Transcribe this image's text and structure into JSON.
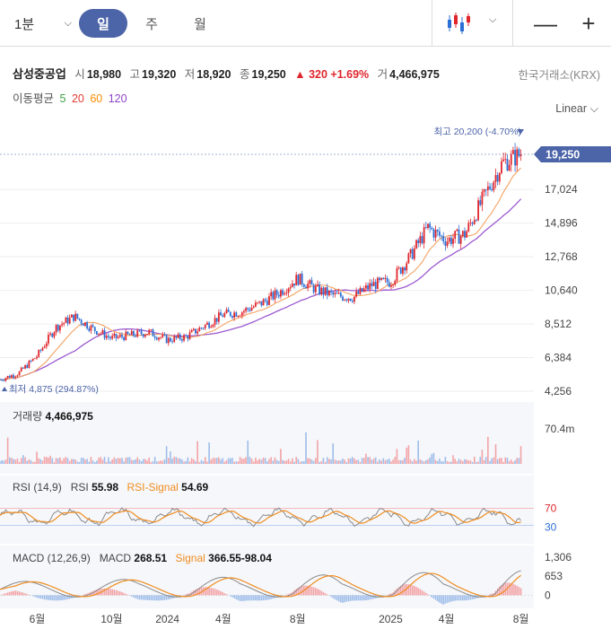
{
  "toolbar": {
    "timeframe_label": "1분",
    "periods": [
      "일",
      "주",
      "월"
    ],
    "active_period": 0
  },
  "stock": {
    "name": "삼성중공업",
    "open_label": "시",
    "open": "18,980",
    "high_label": "고",
    "high": "19,320",
    "low_label": "저",
    "low": "18,920",
    "close_label": "종",
    "close": "19,250",
    "change": "▲ 320 +1.69%",
    "volume_label": "거",
    "volume": "4,466,975",
    "exchange": "한국거래소(KRX)"
  },
  "moving_average": {
    "label": "이동평균",
    "periods": [
      {
        "label": "5",
        "color": "#43a047"
      },
      {
        "label": "20",
        "color": "#e53935"
      },
      {
        "label": "60",
        "color": "#fb8c00"
      },
      {
        "label": "120",
        "color": "#8e44c9"
      }
    ]
  },
  "scale_label": "Linear",
  "colors": {
    "up": "#e0262d",
    "down": "#2b6fd6",
    "ma60": "#f4a261",
    "ma120": "#9b59d0",
    "accent": "#4c64a8",
    "rsi_line": "#8a8a8a",
    "signal": "#f08c1e"
  },
  "chart_data": [
    {
      "type": "line",
      "title": "",
      "price_ticks": [
        "17,024",
        "14,896",
        "12,768",
        "10,640",
        "8,512",
        "6,384",
        "4,256"
      ],
      "ylim": [
        4256,
        20500
      ],
      "current_price": 19250,
      "current_price_label": "19,250",
      "high_annotation": "최고 20,200 (-4.70%)",
      "low_annotation": "최저 4,875 (294.87%)",
      "x_ticks": [
        "6월",
        "10월",
        "2024",
        "4월",
        "8월",
        "2025",
        "4월",
        "8월"
      ],
      "x_tick_dates": [
        "2023-06",
        "2023-10",
        "2024-01",
        "2024-04",
        "2024-08",
        "2025-01",
        "2025-04",
        "2025-08"
      ],
      "x_range": [
        "2023-04",
        "2025-08"
      ],
      "series": [
        {
          "x": [
            "2023-04",
            "2023-05",
            "2023-06",
            "2023-07",
            "2023-08",
            "2023-09",
            "2023-10",
            "2023-11",
            "2023-12",
            "2024-01",
            "2024-02",
            "2024-03",
            "2024-04",
            "2024-05",
            "2024-06",
            "2024-07",
            "2024-08",
            "2024-09",
            "2024-10",
            "2024-11",
            "2024-12",
            "2025-01",
            "2025-02",
            "2025-03",
            "2025-04",
            "2025-05",
            "2025-06",
            "2025-07",
            "2025-08"
          ],
          "values": [
            5000,
            5400,
            6500,
            8300,
            9000,
            8200,
            7600,
            7800,
            8000,
            7500,
            7700,
            8400,
            9100,
            9300,
            9800,
            10500,
            11400,
            10700,
            10300,
            10200,
            11000,
            11200,
            12700,
            14600,
            13800,
            14200,
            16500,
            18700,
            19250
          ]
        }
      ]
    },
    {
      "type": "bar",
      "title": "거래량",
      "value_label": "4,466,975",
      "axis_label": "70.4m",
      "ylim": [
        0,
        70400000
      ]
    },
    {
      "type": "line",
      "title": "RSI (14,9)",
      "rsi_label": "RSI",
      "rsi_value": "55.98",
      "signal_label": "RSI-Signal",
      "signal_value": "54.69",
      "levels": [
        "70",
        "30"
      ],
      "ylim": [
        0,
        100
      ]
    },
    {
      "type": "bar",
      "title": "MACD (12,26,9)",
      "macd_label": "MACD",
      "macd_value": "268.51",
      "signal_label": "Signal",
      "signal_value": "366.55-98.04",
      "axis_ticks": [
        "1,306",
        "653",
        "0"
      ],
      "ylim": [
        -450,
        1306
      ]
    }
  ]
}
